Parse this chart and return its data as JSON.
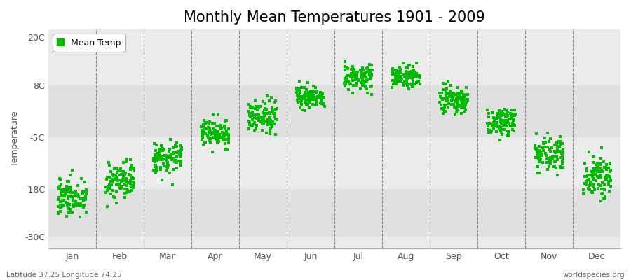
{
  "title": "Monthly Mean Temperatures 1901 - 2009",
  "ylabel": "Temperature",
  "yticks": [
    -30,
    -18,
    -5,
    8,
    20
  ],
  "ytick_labels": [
    "-30C",
    "-18C",
    "-5C",
    "8C",
    "20C"
  ],
  "ylim": [
    -33,
    22
  ],
  "xlim": [
    0,
    12
  ],
  "xtick_labels": [
    "Jan",
    "Feb",
    "Mar",
    "Apr",
    "May",
    "Jun",
    "Jul",
    "Aug",
    "Sep",
    "Oct",
    "Nov",
    "Dec"
  ],
  "vline_positions": [
    1,
    2,
    3,
    4,
    5,
    6,
    7,
    8,
    9,
    10,
    11
  ],
  "dot_color": "#00bb00",
  "dot_size": 5,
  "bg_color": "#ebebeb",
  "bg_band_colors": [
    "#e0e0e0",
    "#ebebeb"
  ],
  "legend_label": "Mean Temp",
  "bottom_left": "Latitude 37.25 Longitude 74.25",
  "bottom_right": "worldspecies.org",
  "title_fontsize": 15,
  "axis_label_fontsize": 9,
  "tick_fontsize": 9,
  "monthly_means": [
    -20,
    -16,
    -10,
    -4,
    0,
    5,
    10,
    10,
    4,
    -1,
    -9,
    -15
  ],
  "monthly_stds": [
    2.5,
    2.5,
    2.0,
    1.8,
    1.8,
    1.5,
    1.5,
    1.5,
    1.8,
    1.8,
    2.0,
    2.5
  ],
  "n_years": 109,
  "x_spread": 0.3
}
